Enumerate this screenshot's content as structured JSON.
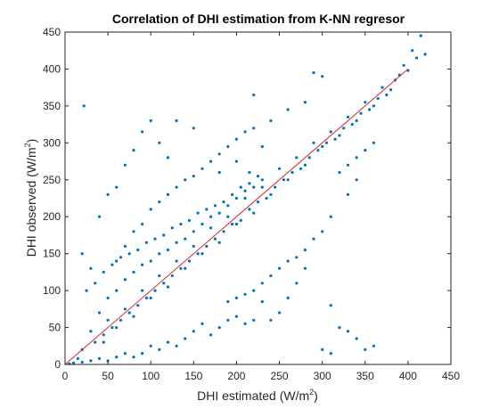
{
  "chart_data": {
    "type": "scatter",
    "title": "Correlation of DHI estimation from K-NN regresor",
    "xlabel": {
      "base": "DHI estimated (W/m",
      "superscript": "2",
      "closing": ")"
    },
    "ylabel": {
      "base": "DHI observed (W/m",
      "superscript": "2",
      "closing": ")"
    },
    "xlim": [
      0,
      450
    ],
    "ylim": [
      0,
      450
    ],
    "xticks": [
      0,
      50,
      100,
      150,
      200,
      250,
      300,
      350,
      400,
      450
    ],
    "yticks": [
      0,
      50,
      100,
      150,
      200,
      250,
      300,
      350,
      400,
      450
    ],
    "grid": false,
    "marker_color": "#0072BD",
    "fit_line": {
      "x": [
        0,
        400
      ],
      "y": [
        0,
        400
      ],
      "color": "#D62728"
    },
    "points": [
      [
        20,
        20
      ],
      [
        30,
        45
      ],
      [
        45,
        30
      ],
      [
        50,
        60
      ],
      [
        60,
        50
      ],
      [
        70,
        75
      ],
      [
        80,
        65
      ],
      [
        90,
        100
      ],
      [
        100,
        90
      ],
      [
        110,
        120
      ],
      [
        120,
        105
      ],
      [
        130,
        140
      ],
      [
        140,
        130
      ],
      [
        150,
        160
      ],
      [
        160,
        150
      ],
      [
        170,
        185
      ],
      [
        180,
        165
      ],
      [
        190,
        200
      ],
      [
        200,
        190
      ],
      [
        210,
        225
      ],
      [
        220,
        205
      ],
      [
        230,
        240
      ],
      [
        240,
        230
      ],
      [
        250,
        265
      ],
      [
        260,
        250
      ],
      [
        270,
        280
      ],
      [
        280,
        270
      ],
      [
        290,
        300
      ],
      [
        300,
        295
      ],
      [
        310,
        315
      ],
      [
        320,
        310
      ],
      [
        330,
        335
      ],
      [
        340,
        330
      ],
      [
        350,
        355
      ],
      [
        360,
        350
      ],
      [
        370,
        375
      ],
      [
        380,
        372
      ],
      [
        390,
        392
      ],
      [
        400,
        398
      ],
      [
        410,
        415
      ],
      [
        420,
        420
      ],
      [
        415,
        445
      ],
      [
        405,
        425
      ],
      [
        395,
        405
      ],
      [
        385,
        385
      ],
      [
        375,
        365
      ],
      [
        365,
        360
      ],
      [
        355,
        345
      ],
      [
        345,
        340
      ],
      [
        335,
        325
      ],
      [
        325,
        320
      ],
      [
        315,
        305
      ],
      [
        305,
        300
      ],
      [
        295,
        290
      ],
      [
        285,
        280
      ],
      [
        275,
        265
      ],
      [
        265,
        260
      ],
      [
        255,
        250
      ],
      [
        245,
        240
      ],
      [
        235,
        225
      ],
      [
        225,
        220
      ],
      [
        215,
        210
      ],
      [
        205,
        195
      ],
      [
        195,
        190
      ],
      [
        185,
        180
      ],
      [
        175,
        170
      ],
      [
        165,
        160
      ],
      [
        155,
        150
      ],
      [
        145,
        140
      ],
      [
        135,
        130
      ],
      [
        125,
        120
      ],
      [
        115,
        110
      ],
      [
        105,
        100
      ],
      [
        95,
        90
      ],
      [
        85,
        80
      ],
      [
        75,
        70
      ],
      [
        65,
        60
      ],
      [
        55,
        50
      ],
      [
        45,
        40
      ],
      [
        35,
        30
      ],
      [
        25,
        100
      ],
      [
        30,
        130
      ],
      [
        22,
        350
      ],
      [
        20,
        150
      ],
      [
        40,
        200
      ],
      [
        50,
        230
      ],
      [
        60,
        240
      ],
      [
        70,
        270
      ],
      [
        80,
        290
      ],
      [
        90,
        315
      ],
      [
        100,
        330
      ],
      [
        110,
        300
      ],
      [
        120,
        280
      ],
      [
        130,
        330
      ],
      [
        150,
        320
      ],
      [
        180,
        260
      ],
      [
        200,
        275
      ],
      [
        215,
        260
      ],
      [
        220,
        365
      ],
      [
        230,
        295
      ],
      [
        290,
        395
      ],
      [
        300,
        390
      ],
      [
        310,
        80
      ],
      [
        320,
        50
      ],
      [
        330,
        45
      ],
      [
        340,
        35
      ],
      [
        300,
        20
      ],
      [
        310,
        15
      ],
      [
        350,
        20
      ],
      [
        360,
        25
      ],
      [
        250,
        70
      ],
      [
        240,
        60
      ],
      [
        260,
        90
      ],
      [
        270,
        110
      ],
      [
        280,
        130
      ],
      [
        230,
        85
      ],
      [
        220,
        60
      ],
      [
        210,
        55
      ],
      [
        200,
        65
      ],
      [
        190,
        60
      ],
      [
        180,
        50
      ],
      [
        170,
        40
      ],
      [
        160,
        55
      ],
      [
        150,
        45
      ],
      [
        140,
        35
      ],
      [
        130,
        25
      ],
      [
        120,
        30
      ],
      [
        110,
        20
      ],
      [
        100,
        25
      ],
      [
        90,
        15
      ],
      [
        80,
        10
      ],
      [
        70,
        15
      ],
      [
        60,
        10
      ],
      [
        50,
        5
      ],
      [
        40,
        8
      ],
      [
        30,
        5
      ],
      [
        20,
        3
      ],
      [
        10,
        2
      ],
      [
        5,
        1
      ],
      [
        15,
        8
      ],
      [
        320,
        260
      ],
      [
        330,
        270
      ],
      [
        340,
        280
      ],
      [
        350,
        290
      ],
      [
        360,
        300
      ],
      [
        340,
        250
      ],
      [
        330,
        230
      ],
      [
        310,
        200
      ],
      [
        300,
        180
      ],
      [
        290,
        170
      ],
      [
        280,
        155
      ],
      [
        270,
        145
      ],
      [
        260,
        140
      ],
      [
        250,
        130
      ],
      [
        240,
        120
      ],
      [
        230,
        110
      ],
      [
        220,
        100
      ],
      [
        210,
        95
      ],
      [
        200,
        90
      ],
      [
        190,
        85
      ],
      [
        60,
        140
      ],
      [
        70,
        160
      ],
      [
        80,
        180
      ],
      [
        90,
        190
      ],
      [
        100,
        210
      ],
      [
        110,
        220
      ],
      [
        120,
        230
      ],
      [
        130,
        240
      ],
      [
        140,
        250
      ],
      [
        150,
        255
      ],
      [
        160,
        265
      ],
      [
        170,
        275
      ],
      [
        180,
        285
      ],
      [
        190,
        295
      ],
      [
        200,
        305
      ],
      [
        210,
        315
      ],
      [
        220,
        320
      ],
      [
        240,
        330
      ],
      [
        260,
        345
      ],
      [
        280,
        355
      ],
      [
        35,
        110
      ],
      [
        45,
        125
      ],
      [
        55,
        135
      ],
      [
        65,
        145
      ],
      [
        75,
        150
      ],
      [
        85,
        155
      ],
      [
        95,
        165
      ],
      [
        105,
        170
      ],
      [
        115,
        175
      ],
      [
        125,
        185
      ],
      [
        135,
        190
      ],
      [
        145,
        195
      ],
      [
        155,
        205
      ],
      [
        165,
        210
      ],
      [
        175,
        215
      ],
      [
        185,
        220
      ],
      [
        195,
        230
      ],
      [
        205,
        240
      ],
      [
        215,
        245
      ],
      [
        225,
        255
      ],
      [
        40,
        70
      ],
      [
        50,
        90
      ],
      [
        60,
        100
      ],
      [
        70,
        115
      ],
      [
        80,
        125
      ],
      [
        90,
        135
      ],
      [
        100,
        140
      ],
      [
        110,
        150
      ],
      [
        120,
        155
      ],
      [
        130,
        165
      ],
      [
        140,
        170
      ],
      [
        150,
        180
      ],
      [
        160,
        190
      ],
      [
        170,
        200
      ],
      [
        180,
        205
      ],
      [
        190,
        215
      ],
      [
        200,
        225
      ],
      [
        210,
        235
      ],
      [
        220,
        240
      ],
      [
        230,
        250
      ]
    ]
  }
}
